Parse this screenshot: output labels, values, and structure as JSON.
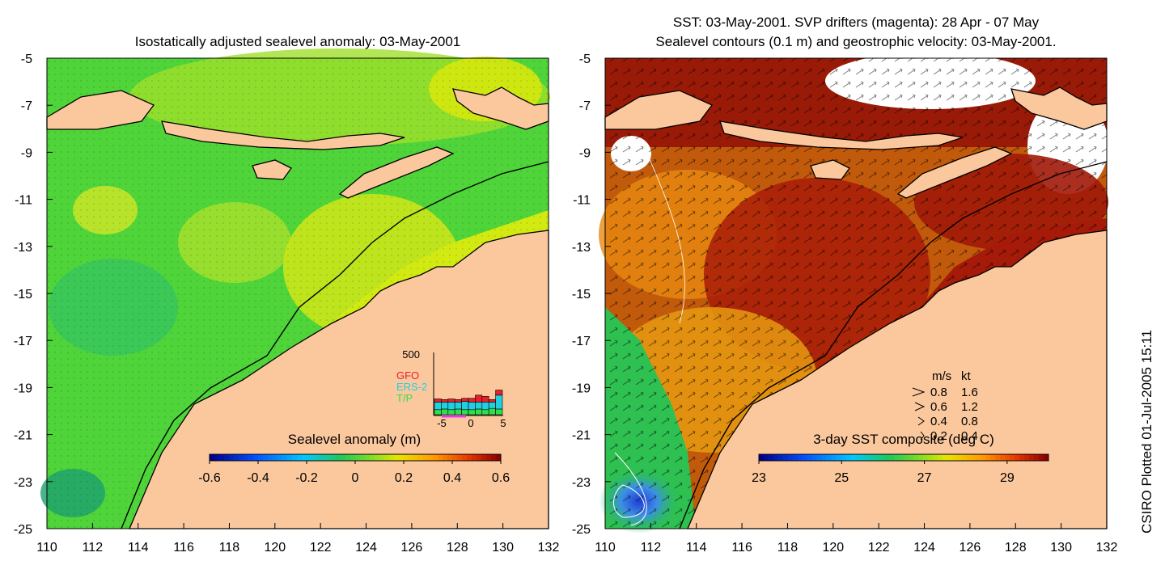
{
  "left_title": "Isostatically adjusted sealevel anomaly: 03-May-2001",
  "right_title_line1": "SST: 03-May-2001. SVP drifters (magenta): 28 Apr - 07 May",
  "right_title_line2": "Sealevel contours (0.1 m) and geostrophic velocity: 03-May-2001.",
  "stamp": "CSIRO Plotted 01-Jul-2005 15:11",
  "colors": {
    "land": "#fbc89e",
    "coast": "#000000"
  },
  "chart_data": [
    {
      "type": "heatmap",
      "name": "sealevel-anomaly-map",
      "title": "Isostatically adjusted sealevel anomaly: 03-May-2001",
      "x_ticks": [
        "110",
        "112",
        "114",
        "116",
        "118",
        "120",
        "122",
        "124",
        "126",
        "128",
        "130",
        "132"
      ],
      "y_ticks": [
        "-5",
        "-7",
        "-9",
        "-11",
        "-13",
        "-15",
        "-17",
        "-19",
        "-21",
        "-23",
        "-25"
      ],
      "xlim": [
        110,
        132
      ],
      "ylim": [
        -25,
        -5
      ],
      "colorbar": {
        "label": "Sealevel anomaly (m)",
        "range": [
          -0.6,
          0.6
        ],
        "ticks": [
          "-0.6",
          "-0.4",
          "-0.2",
          "0",
          "0.2",
          "0.4",
          "0.6"
        ]
      },
      "inset": {
        "type": "bar",
        "ymax_label": "500",
        "x_ticks": [
          "-5",
          "0",
          "5"
        ],
        "legend": [
          {
            "name": "GFO",
            "color": "#e8202a"
          },
          {
            "name": "ERS-2",
            "color": "#22cfe0"
          },
          {
            "name": "T/P",
            "color": "#2ee04a"
          }
        ],
        "series": [
          {
            "name": "T/P",
            "values": [
              40,
              45,
              40,
              45,
              40,
              40,
              45,
              40,
              50,
              45
            ]
          },
          {
            "name": "ERS-2",
            "values": [
              60,
              55,
              60,
              55,
              65,
              60,
              55,
              60,
              50,
              110
            ]
          },
          {
            "name": "GFO",
            "values": [
              25,
              20,
              25,
              20,
              25,
              30,
              55,
              45,
              20,
              40
            ]
          }
        ]
      }
    },
    {
      "type": "heatmap",
      "name": "sst-composite-map",
      "title": "SST: 03-May-2001. SVP drifters (magenta): 28 Apr - 07 May / Sealevel contours (0.1 m) and geostrophic velocity: 03-May-2001.",
      "x_ticks": [
        "110",
        "112",
        "114",
        "116",
        "118",
        "120",
        "122",
        "124",
        "126",
        "128",
        "130",
        "132"
      ],
      "y_ticks": [
        "-5",
        "-7",
        "-9",
        "-11",
        "-13",
        "-15",
        "-17",
        "-19",
        "-21",
        "-23",
        "-25"
      ],
      "xlim": [
        110,
        132
      ],
      "ylim": [
        -25,
        -5
      ],
      "colorbar": {
        "label": "3-day SST composite (deg C)",
        "range": [
          23,
          30
        ],
        "ticks": [
          "23",
          "25",
          "27",
          "29"
        ]
      },
      "velocity_legend": {
        "header_ms": "m/s",
        "header_kt": "kt",
        "rows": [
          {
            "ms": "0.8",
            "kt": "1.6"
          },
          {
            "ms": "0.6",
            "kt": "1.2"
          },
          {
            "ms": "0.4",
            "kt": "0.8"
          },
          {
            "ms": "0.2",
            "kt": "0.4"
          }
        ]
      }
    }
  ]
}
